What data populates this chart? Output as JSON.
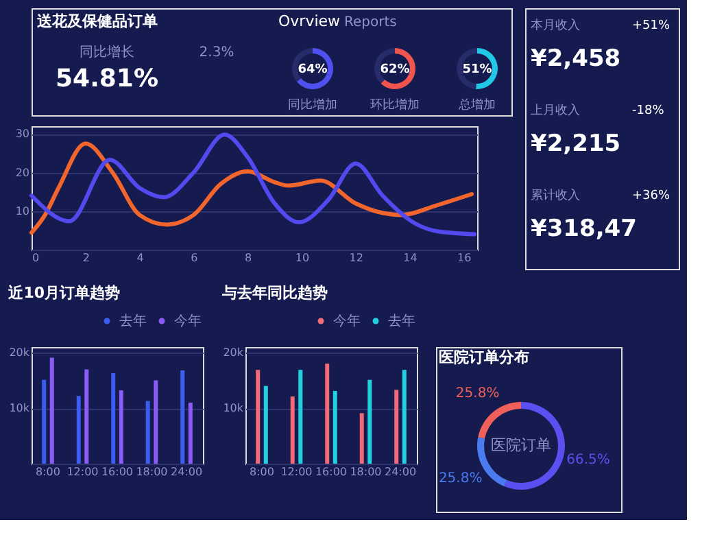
{
  "chart_data": [
    {
      "type": "other",
      "title": "送花及保健品订单",
      "annotations": [
        "Ovrview",
        "Reports",
        "同比增长",
        "54.81%",
        "2.3%"
      ]
    },
    {
      "type": "donut",
      "title": "同比增加",
      "categories": [
        null,
        null
      ],
      "values": [
        64,
        36
      ],
      "colors": [
        "#5050f0",
        "#262b6a"
      ],
      "value_labels": [
        "64%",
        null
      ]
    },
    {
      "type": "donut",
      "title": "环比增加",
      "categories": [
        null,
        null
      ],
      "values": [
        62,
        38
      ],
      "colors": [
        "#f0544e",
        "#262b6a"
      ],
      "value_labels": [
        "62%",
        null
      ]
    },
    {
      "type": "donut",
      "title": "总增加",
      "categories": [
        null,
        null
      ],
      "values": [
        51,
        49
      ],
      "colors": [
        "#22c8e8",
        "#262b6a"
      ],
      "value_labels": [
        "51%",
        null
      ]
    },
    {
      "type": "line",
      "xlim": [
        0,
        16.5
      ],
      "xticks": [
        0,
        2,
        4,
        6,
        8,
        10,
        12,
        14,
        16
      ],
      "ylim": [
        0,
        32
      ],
      "yticks": [
        {
          "value": 0,
          "label": null
        },
        10,
        20,
        30
      ],
      "grid": "y",
      "series": [
        {
          "color": "#f2652c",
          "x": [
            0,
            0.5,
            1,
            2,
            3,
            4,
            5,
            6,
            7,
            8,
            9,
            9.5,
            10.7,
            12,
            13,
            13.7,
            15,
            16.3
          ],
          "values": [
            4.4,
            9,
            16,
            27.5,
            20,
            9,
            6.5,
            9,
            17,
            20.3,
            17.5,
            16.6,
            17.9,
            12,
            9.5,
            9,
            11.5,
            14.4
          ]
        },
        {
          "color": "#5249ee",
          "x": [
            0,
            1.4,
            2.9,
            4,
            4.9,
            6,
            7.15,
            8,
            9,
            9.9,
            11,
            12,
            13,
            14.2,
            15,
            16.4
          ],
          "values": [
            14,
            7.4,
            23.3,
            16,
            13.6,
            20,
            29.8,
            24,
            12,
            7.1,
            13,
            22.3,
            14,
            6.8,
            4.8,
            4
          ]
        }
      ]
    },
    {
      "type": "other",
      "annotations": [
        "本月收入",
        "¥2,458",
        "+51%",
        "上月收入",
        "¥2,215",
        "-18%",
        "累计收入",
        "¥318,47",
        "+36%"
      ]
    },
    {
      "type": "bar",
      "title": "近10月订单趋势",
      "categories": [
        "8:00",
        "12:00",
        "16:00",
        "18:00",
        "24:00"
      ],
      "ylim": [
        0,
        21000
      ],
      "yticks": [
        {
          "value": 10000,
          "label": "10k"
        },
        {
          "value": 20000,
          "label": "20k"
        }
      ],
      "grid": "y",
      "legend": "top right",
      "series": [
        {
          "name": "去年",
          "color": "#3d5cf0",
          "values": [
            15100,
            12200,
            16300,
            11300,
            16800
          ]
        },
        {
          "name": "今年",
          "color": "#8a5cf5",
          "values": [
            19100,
            17000,
            13200,
            15000,
            11000
          ]
        }
      ]
    },
    {
      "type": "bar",
      "title": "与去年同比趋势",
      "categories": [
        "8:00",
        "12:00",
        "16:00",
        "18:00",
        "24:00"
      ],
      "ylim": [
        0,
        21000
      ],
      "yticks": [
        {
          "value": 10000,
          "label": "10k"
        },
        {
          "value": 20000,
          "label": "20k"
        }
      ],
      "grid": "y",
      "legend": "top right",
      "series": [
        {
          "name": "今年",
          "color": "#f06a78",
          "values": [
            16900,
            12100,
            18000,
            9100,
            13300
          ]
        },
        {
          "name": "去年",
          "color": "#22d0e0",
          "values": [
            14000,
            16900,
            13100,
            15100,
            16900
          ]
        }
      ]
    },
    {
      "type": "donut",
      "title": "医院订单分布",
      "annotations": [
        "医院订单"
      ],
      "categories": [
        null,
        null,
        null
      ],
      "values": [
        66.5,
        25.8,
        25.8
      ],
      "colors": [
        "#5a4ff0",
        "#4a7cf0",
        "#f0605a"
      ],
      "value_labels": [
        "66.5%",
        "25.8%",
        "25.8%"
      ]
    }
  ]
}
